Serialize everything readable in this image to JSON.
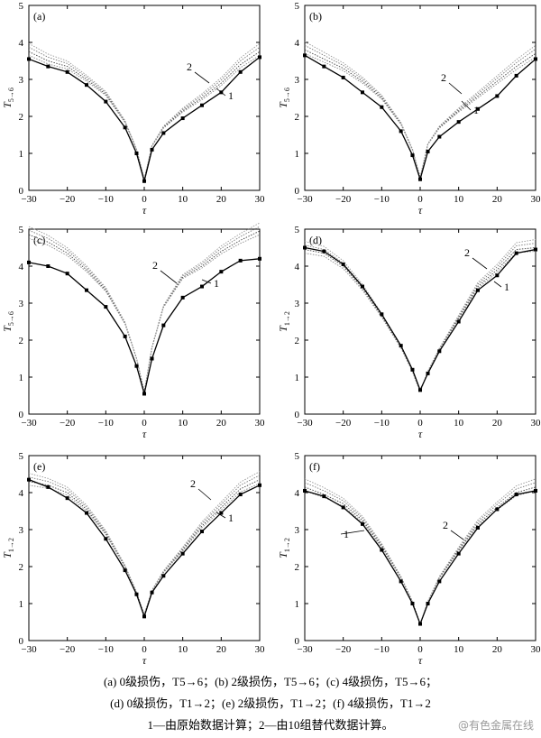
{
  "chart_data": [
    {
      "type": "line",
      "panel_label": "(a)",
      "ylabel": "T5→6",
      "ylabel_main": "T",
      "ylabel_sub": "5→6",
      "xlabel": "τ",
      "xlim": [
        -30,
        30
      ],
      "ylim": [
        0,
        5
      ],
      "xticks": [
        -30,
        -20,
        -10,
        0,
        10,
        20,
        30
      ],
      "yticks": [
        0,
        1,
        2,
        3,
        4,
        5
      ],
      "annotations": [
        "1",
        "2"
      ],
      "series": [
        {
          "name": "1",
          "style": "solid-square-markers",
          "x": [
            -30,
            -25,
            -20,
            -15,
            -10,
            -5,
            -2,
            0,
            2,
            5,
            10,
            15,
            20,
            25,
            30
          ],
          "y": [
            3.55,
            3.35,
            3.2,
            2.85,
            2.4,
            1.7,
            1.0,
            0.25,
            1.1,
            1.55,
            1.95,
            2.3,
            2.65,
            3.2,
            3.6
          ]
        },
        {
          "name": "2",
          "style": "dotted-replacement-curves",
          "x": [
            -30,
            -25,
            -20,
            -15,
            -10,
            -5,
            -2,
            0,
            2,
            5,
            10,
            15,
            20,
            25,
            30
          ],
          "y": [
            3.75,
            3.5,
            3.35,
            3.0,
            2.6,
            1.85,
            1.1,
            0.3,
            1.2,
            1.7,
            2.15,
            2.5,
            2.9,
            3.4,
            3.75
          ]
        }
      ]
    },
    {
      "type": "line",
      "panel_label": "(b)",
      "ylabel": "T5→6",
      "ylabel_main": "T",
      "ylabel_sub": "5→6",
      "xlabel": "τ",
      "xlim": [
        -30,
        30
      ],
      "ylim": [
        0,
        5
      ],
      "xticks": [
        -30,
        -20,
        -10,
        0,
        10,
        20,
        30
      ],
      "yticks": [
        0,
        1,
        2,
        3,
        4,
        5
      ],
      "annotations": [
        "1",
        "2"
      ],
      "series": [
        {
          "name": "1",
          "style": "solid-square-markers",
          "x": [
            -30,
            -25,
            -20,
            -15,
            -10,
            -5,
            -2,
            0,
            2,
            5,
            10,
            15,
            20,
            25,
            30
          ],
          "y": [
            3.65,
            3.35,
            3.05,
            2.65,
            2.25,
            1.6,
            0.95,
            0.3,
            1.05,
            1.45,
            1.85,
            2.2,
            2.55,
            3.1,
            3.55
          ]
        },
        {
          "name": "2",
          "style": "dotted-replacement-curves",
          "x": [
            -30,
            -25,
            -20,
            -15,
            -10,
            -5,
            -2,
            0,
            2,
            5,
            10,
            15,
            20,
            25,
            30
          ],
          "y": [
            3.8,
            3.55,
            3.3,
            2.95,
            2.5,
            1.8,
            1.1,
            0.35,
            1.25,
            1.7,
            2.15,
            2.55,
            2.95,
            3.35,
            3.7
          ]
        }
      ]
    },
    {
      "type": "line",
      "panel_label": "(c)",
      "ylabel": "T5→6",
      "ylabel_main": "T",
      "ylabel_sub": "5→6",
      "xlabel": "τ",
      "xlim": [
        -30,
        30
      ],
      "ylim": [
        0,
        5
      ],
      "xticks": [
        -30,
        -20,
        -10,
        0,
        10,
        20,
        30
      ],
      "yticks": [
        0,
        1,
        2,
        3,
        4,
        5
      ],
      "annotations": [
        "1",
        "2"
      ],
      "series": [
        {
          "name": "1",
          "style": "solid-square-markers",
          "x": [
            -30,
            -25,
            -20,
            -15,
            -10,
            -5,
            -2,
            0,
            2,
            5,
            10,
            15,
            20,
            25,
            30
          ],
          "y": [
            4.1,
            4.0,
            3.8,
            3.35,
            2.9,
            2.1,
            1.3,
            0.55,
            1.5,
            2.4,
            3.15,
            3.45,
            3.85,
            4.15,
            4.2
          ]
        },
        {
          "name": "2",
          "style": "dotted-replacement-curves",
          "x": [
            -30,
            -25,
            -20,
            -15,
            -10,
            -5,
            -2,
            0,
            2,
            5,
            10,
            15,
            20,
            25,
            30
          ],
          "y": [
            4.85,
            4.65,
            4.35,
            3.9,
            3.35,
            2.45,
            1.5,
            0.6,
            1.8,
            2.9,
            3.7,
            4.0,
            4.4,
            4.7,
            4.95
          ]
        }
      ]
    },
    {
      "type": "line",
      "panel_label": "(d)",
      "ylabel": "T1→2",
      "ylabel_main": "T",
      "ylabel_sub": "1→2",
      "xlabel": "τ",
      "xlim": [
        -30,
        30
      ],
      "ylim": [
        0,
        5
      ],
      "xticks": [
        -30,
        -20,
        -10,
        0,
        10,
        20,
        30
      ],
      "yticks": [
        0,
        1,
        2,
        3,
        4,
        5
      ],
      "annotations": [
        "1",
        "2"
      ],
      "series": [
        {
          "name": "1",
          "style": "solid-square-markers",
          "x": [
            -30,
            -25,
            -20,
            -15,
            -10,
            -5,
            -2,
            0,
            2,
            5,
            10,
            15,
            20,
            25,
            30
          ],
          "y": [
            4.5,
            4.4,
            4.05,
            3.45,
            2.7,
            1.85,
            1.2,
            0.65,
            1.1,
            1.7,
            2.5,
            3.35,
            3.75,
            4.35,
            4.45
          ]
        },
        {
          "name": "2",
          "style": "dotted-replacement-curves",
          "x": [
            -30,
            -25,
            -20,
            -15,
            -10,
            -5,
            -2,
            0,
            2,
            5,
            10,
            15,
            20,
            25,
            30
          ],
          "y": [
            4.45,
            4.35,
            4.0,
            3.4,
            2.65,
            1.8,
            1.15,
            0.6,
            1.15,
            1.75,
            2.6,
            3.45,
            3.9,
            4.45,
            4.5
          ]
        }
      ]
    },
    {
      "type": "line",
      "panel_label": "(e)",
      "ylabel": "T1→2",
      "ylabel_main": "T",
      "ylabel_sub": "1→2",
      "xlabel": "τ",
      "xlim": [
        -30,
        30
      ],
      "ylim": [
        0,
        5
      ],
      "xticks": [
        -30,
        -20,
        -10,
        0,
        10,
        20,
        30
      ],
      "yticks": [
        0,
        1,
        2,
        3,
        4,
        5
      ],
      "annotations": [
        "1",
        "2"
      ],
      "series": [
        {
          "name": "1",
          "style": "solid-square-markers",
          "x": [
            -30,
            -25,
            -20,
            -15,
            -10,
            -5,
            -2,
            0,
            2,
            5,
            10,
            15,
            20,
            25,
            30
          ],
          "y": [
            4.35,
            4.15,
            3.85,
            3.45,
            2.75,
            1.9,
            1.25,
            0.65,
            1.3,
            1.75,
            2.35,
            2.95,
            3.45,
            3.95,
            4.2
          ]
        },
        {
          "name": "2",
          "style": "dotted-replacement-curves",
          "x": [
            -30,
            -25,
            -20,
            -15,
            -10,
            -5,
            -2,
            0,
            2,
            5,
            10,
            15,
            20,
            25,
            30
          ],
          "y": [
            4.3,
            4.2,
            4.0,
            3.55,
            2.9,
            2.0,
            1.3,
            0.7,
            1.35,
            1.85,
            2.45,
            3.1,
            3.6,
            4.1,
            4.35
          ]
        }
      ]
    },
    {
      "type": "line",
      "panel_label": "(f)",
      "ylabel": "T1→2",
      "ylabel_main": "T",
      "ylabel_sub": "1→2",
      "xlabel": "τ",
      "xlim": [
        -30,
        30
      ],
      "ylim": [
        0,
        5
      ],
      "xticks": [
        -30,
        -20,
        -10,
        0,
        10,
        20,
        30
      ],
      "yticks": [
        0,
        1,
        2,
        3,
        4,
        5
      ],
      "annotations": [
        "1",
        "2"
      ],
      "series": [
        {
          "name": "1",
          "style": "solid-square-markers",
          "x": [
            -30,
            -25,
            -20,
            -15,
            -10,
            -5,
            -2,
            0,
            2,
            5,
            10,
            15,
            20,
            25,
            30
          ],
          "y": [
            4.05,
            3.9,
            3.6,
            3.15,
            2.45,
            1.6,
            1.0,
            0.45,
            1.0,
            1.6,
            2.35,
            3.05,
            3.55,
            3.95,
            4.05
          ]
        },
        {
          "name": "2",
          "style": "dotted-replacement-curves",
          "x": [
            -30,
            -25,
            -20,
            -15,
            -10,
            -5,
            -2,
            0,
            2,
            5,
            10,
            15,
            20,
            25,
            30
          ],
          "y": [
            4.15,
            3.95,
            3.7,
            3.25,
            2.55,
            1.7,
            1.05,
            0.45,
            1.05,
            1.7,
            2.45,
            3.15,
            3.6,
            4.0,
            4.15
          ]
        }
      ]
    }
  ],
  "caption": {
    "line1": "(a) 0级损伤，T5→6；(b) 2级损伤，T5→6；(c) 4级损伤，T5→6；",
    "line2": "(d) 0级损伤，T1→2；(e) 2级损伤，T1→2；(f) 4级损伤，T1→2",
    "line3": "1—由原始数据计算；2—由10组替代数据计算。"
  },
  "watermark": "@有色金属在线"
}
